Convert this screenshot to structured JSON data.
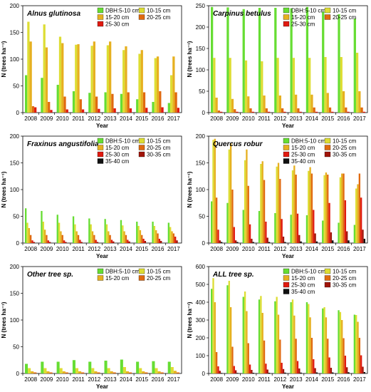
{
  "colors": {
    "DBH:5-10  cm": "#66dd33",
    "10-15 cm": "#dddd33",
    "15-20 cm": "#e6b020",
    "20-25 cm": "#e06a10",
    "25-30 cm": "#e01a10",
    "30-35 cm": "#a01408",
    "35-40 cm": "#111111"
  },
  "chart_data": [
    {
      "type": "bar",
      "title": "Alnus glutinosa",
      "xlabel": "Year",
      "ylabel": "N (trees ha⁻¹)",
      "ylim": [
        0,
        200
      ],
      "yticks": [
        0,
        50,
        100,
        150,
        200
      ],
      "categories": [
        "2008",
        "2009",
        "2010",
        "2011",
        "2012",
        "2013",
        "2014",
        "2015",
        "2016",
        "2017"
      ],
      "series": [
        {
          "name": "DBH:5-10  cm",
          "values": [
            70,
            65,
            52,
            40,
            37,
            38,
            35,
            25,
            20,
            18
          ]
        },
        {
          "name": "10-15 cm",
          "values": [
            170,
            165,
            142,
            127,
            125,
            126,
            117,
            110,
            102,
            70
          ]
        },
        {
          "name": "15-20 cm",
          "values": [
            133,
            122,
            130,
            128,
            133,
            133,
            124,
            117,
            105,
            105
          ]
        },
        {
          "name": "20-25 cm",
          "values": [
            12,
            20,
            30,
            25,
            30,
            35,
            38,
            38,
            40,
            38
          ]
        },
        {
          "name": "25-30 cm",
          "values": [
            10,
            5,
            6,
            6,
            7,
            8,
            8,
            9,
            10,
            9
          ]
        }
      ]
    },
    {
      "type": "bar",
      "title": "Carpinus betulus",
      "xlabel": "Year",
      "ylabel": "N (trees ha⁻¹)",
      "ylim": [
        0,
        250
      ],
      "yticks": [
        0,
        50,
        100,
        150,
        200,
        250
      ],
      "categories": [
        "2008",
        "2009",
        "2010",
        "2011",
        "2012",
        "2013",
        "2014",
        "2015",
        "2016",
        "2017"
      ],
      "series": [
        {
          "name": "DBH:5-10  cm",
          "values": [
            247,
            246,
            242,
            245,
            245,
            244,
            247,
            236,
            230,
            220
          ]
        },
        {
          "name": "10-15 cm",
          "values": [
            128,
            128,
            122,
            120,
            128,
            128,
            128,
            130,
            130,
            140
          ]
        },
        {
          "name": "15-20 cm",
          "values": [
            35,
            32,
            38,
            40,
            40,
            42,
            42,
            46,
            50,
            50
          ]
        },
        {
          "name": "20-25 cm",
          "values": [
            5,
            8,
            10,
            10,
            10,
            10,
            12,
            12,
            12,
            12
          ]
        },
        {
          "name": "25-30 cm",
          "values": [
            2,
            2,
            2,
            2,
            2,
            2,
            2,
            2,
            2,
            2
          ]
        }
      ]
    },
    {
      "type": "bar",
      "title": "Fraxinus angustifolia",
      "xlabel": "Year",
      "ylabel": "N (trees ha⁻¹)",
      "ylim": [
        0,
        200
      ],
      "yticks": [
        0,
        50,
        100,
        150,
        200
      ],
      "categories": [
        "2008",
        "2009",
        "2010",
        "2011",
        "2012",
        "2013",
        "2014",
        "2015",
        "2016",
        "2017"
      ],
      "series": [
        {
          "name": "DBH:5-10  cm",
          "values": [
            65,
            60,
            53,
            50,
            46,
            45,
            43,
            40,
            40,
            38
          ]
        },
        {
          "name": "10-15 cm",
          "values": [
            38,
            40,
            38,
            35,
            35,
            35,
            33,
            32,
            32,
            30
          ]
        },
        {
          "name": "15-20 cm",
          "values": [
            28,
            25,
            22,
            22,
            22,
            22,
            22,
            24,
            24,
            22
          ]
        },
        {
          "name": "20-25 cm",
          "values": [
            15,
            15,
            15,
            15,
            15,
            15,
            15,
            15,
            18,
            18
          ]
        },
        {
          "name": "25-30 cm",
          "values": [
            5,
            5,
            5,
            6,
            6,
            6,
            6,
            8,
            8,
            12
          ]
        },
        {
          "name": "30-35 cm",
          "values": [
            2,
            2,
            2,
            2,
            2,
            3,
            3,
            4,
            4,
            5
          ]
        },
        {
          "name": "35-40 cm",
          "values": [
            0,
            0,
            0,
            0,
            0,
            0,
            0,
            0,
            0,
            0
          ]
        }
      ]
    },
    {
      "type": "bar",
      "title": "Quercus robur",
      "xlabel": "Year",
      "ylabel": "N (trees ha⁻¹)",
      "ylim": [
        0,
        200
      ],
      "yticks": [
        0,
        50,
        100,
        150,
        200
      ],
      "categories": [
        "2008",
        "2009",
        "2010",
        "2011",
        "2012",
        "2013",
        "2014",
        "2015",
        "2016",
        "2017"
      ],
      "series": [
        {
          "name": "DBH:5-10  cm",
          "values": [
            78,
            75,
            62,
            60,
            56,
            53,
            52,
            42,
            38,
            34
          ]
        },
        {
          "name": "10-15 cm",
          "values": [
            193,
            175,
            155,
            148,
            143,
            136,
            135,
            127,
            123,
            102
          ]
        },
        {
          "name": "15-20 cm",
          "values": [
            195,
            187,
            175,
            153,
            150,
            145,
            142,
            132,
            130,
            110
          ]
        },
        {
          "name": "20-25 cm",
          "values": [
            85,
            100,
            107,
            118,
            120,
            128,
            130,
            128,
            130,
            130
          ]
        },
        {
          "name": "25-30 cm",
          "values": [
            25,
            30,
            35,
            40,
            45,
            55,
            62,
            75,
            80,
            85
          ]
        },
        {
          "name": "30-35 cm",
          "values": [
            5,
            5,
            8,
            10,
            12,
            15,
            18,
            20,
            22,
            25
          ]
        },
        {
          "name": "35-40 cm",
          "values": [
            2,
            2,
            2,
            2,
            2,
            3,
            3,
            5,
            5,
            8
          ]
        }
      ]
    },
    {
      "type": "bar",
      "title": "Other tree sp.",
      "xlabel": "Year",
      "ylabel": "N (trees ha⁻¹)",
      "ylim": [
        0,
        200
      ],
      "yticks": [
        0,
        50,
        100,
        150,
        200
      ],
      "categories": [
        "2008",
        "2009",
        "2010",
        "2011",
        "2012",
        "2013",
        "2014",
        "2015",
        "2016",
        "2017"
      ],
      "series": [
        {
          "name": "DBH:5-10  cm",
          "values": [
            18,
            22,
            22,
            25,
            22,
            24,
            26,
            22,
            23,
            22
          ]
        },
        {
          "name": "10-15 cm",
          "values": [
            10,
            10,
            10,
            10,
            10,
            10,
            12,
            10,
            10,
            12
          ]
        },
        {
          "name": "15-20 cm",
          "values": [
            4,
            4,
            4,
            4,
            4,
            4,
            4,
            4,
            4,
            5
          ]
        },
        {
          "name": "20-25 cm",
          "values": [
            2,
            2,
            2,
            2,
            2,
            2,
            2,
            2,
            2,
            2
          ]
        }
      ]
    },
    {
      "type": "bar",
      "title": "ALL tree sp.",
      "xlabel": "Year",
      "ylabel": "N (trees ha⁻¹)",
      "ylim": [
        0,
        600
      ],
      "yticks": [
        0,
        100,
        200,
        300,
        400,
        500,
        600
      ],
      "categories": [
        "2008",
        "2009",
        "2010",
        "2011",
        "2012",
        "2013",
        "2014",
        "2015",
        "2016",
        "2017"
      ],
      "series": [
        {
          "name": "DBH:5-10  cm",
          "values": [
            475,
            495,
            430,
            415,
            405,
            400,
            400,
            365,
            355,
            330
          ]
        },
        {
          "name": "10-15 cm",
          "values": [
            535,
            520,
            460,
            435,
            430,
            415,
            390,
            372,
            345,
            328
          ]
        },
        {
          "name": "15-20 cm",
          "values": [
            400,
            372,
            350,
            340,
            330,
            325,
            315,
            315,
            300,
            290
          ]
        },
        {
          "name": "20-25 cm",
          "values": [
            120,
            150,
            170,
            185,
            190,
            195,
            200,
            195,
            198,
            200
          ]
        },
        {
          "name": "25-30 cm",
          "values": [
            40,
            42,
            50,
            55,
            60,
            70,
            80,
            90,
            100,
            102
          ]
        },
        {
          "name": "30-35 cm",
          "values": [
            15,
            18,
            20,
            22,
            25,
            28,
            30,
            32,
            35,
            38
          ]
        },
        {
          "name": "35-40 cm",
          "values": [
            3,
            3,
            4,
            4,
            5,
            5,
            6,
            6,
            7,
            8
          ]
        }
      ]
    }
  ]
}
